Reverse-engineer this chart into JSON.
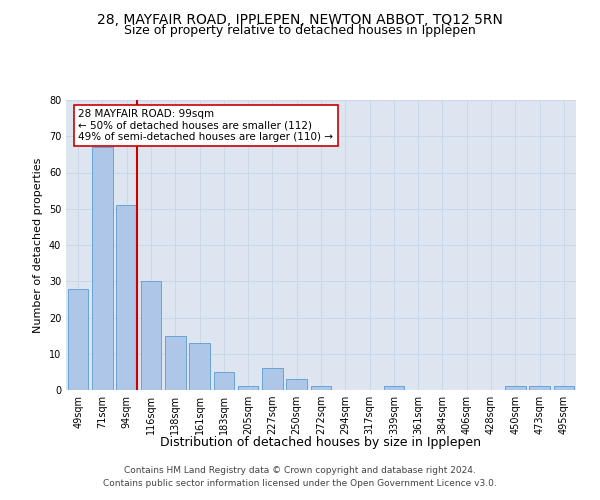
{
  "title1": "28, MAYFAIR ROAD, IPPLEPEN, NEWTON ABBOT, TQ12 5RN",
  "title2": "Size of property relative to detached houses in Ipplepen",
  "xlabel": "Distribution of detached houses by size in Ipplepen",
  "ylabel": "Number of detached properties",
  "categories": [
    "49sqm",
    "71sqm",
    "94sqm",
    "116sqm",
    "138sqm",
    "161sqm",
    "183sqm",
    "205sqm",
    "227sqm",
    "250sqm",
    "272sqm",
    "294sqm",
    "317sqm",
    "339sqm",
    "361sqm",
    "384sqm",
    "406sqm",
    "428sqm",
    "450sqm",
    "473sqm",
    "495sqm"
  ],
  "values": [
    28,
    67,
    51,
    30,
    15,
    13,
    5,
    1,
    6,
    3,
    1,
    0,
    0,
    1,
    0,
    0,
    0,
    0,
    1,
    1,
    1
  ],
  "bar_color": "#aec6e8",
  "bar_edge_color": "#5b9bd5",
  "vline_color": "#cc0000",
  "annotation_text": "28 MAYFAIR ROAD: 99sqm\n← 50% of detached houses are smaller (112)\n49% of semi-detached houses are larger (110) →",
  "annotation_box_color": "#ffffff",
  "annotation_box_edge": "#cc0000",
  "ylim": [
    0,
    80
  ],
  "yticks": [
    0,
    10,
    20,
    30,
    40,
    50,
    60,
    70,
    80
  ],
  "grid_color": "#ccd6e8",
  "bg_color": "#dde6f0",
  "footer": "Contains HM Land Registry data © Crown copyright and database right 2024.\nContains public sector information licensed under the Open Government Licence v3.0.",
  "title1_fontsize": 10,
  "title2_fontsize": 9,
  "xlabel_fontsize": 9,
  "ylabel_fontsize": 8,
  "tick_fontsize": 7,
  "annotation_fontsize": 7.5,
  "footer_fontsize": 6.5
}
